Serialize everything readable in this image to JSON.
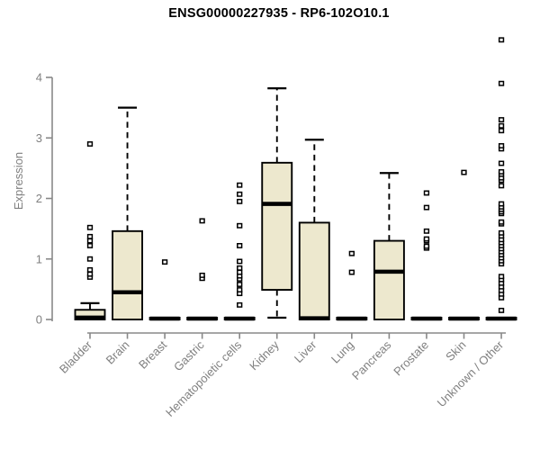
{
  "chart_data": {
    "type": "boxplot",
    "title": "ENSG00000227935 - RP6-102O10.1",
    "ylabel": "Expression",
    "xlabel": "",
    "ylim": [
      0,
      4.7
    ],
    "yticks": [
      0,
      1,
      2,
      3,
      4
    ],
    "grid": false,
    "legend": "none",
    "box_fill": "#EDE8CE",
    "box_border": "#000000",
    "median_color": "#000000",
    "axis_color": "#888888",
    "label_color": "#808080",
    "title_color": "#000000",
    "categories": [
      "Bladder",
      "Brain",
      "Breast",
      "Gastric",
      "Hematopoietic cells",
      "Kidney",
      "Liver",
      "Lung",
      "Pancreas",
      "Prostate",
      "Skin",
      "Unknown / Other"
    ],
    "series": [
      {
        "name": "Bladder",
        "whisker_low": 0,
        "q1": 0,
        "median": 0.03,
        "q3": 0.16,
        "whisker_high": 0.27,
        "outliers": [
          0.7,
          0.75,
          0.82,
          1.0,
          1.22,
          1.3,
          1.37,
          1.52,
          2.9
        ]
      },
      {
        "name": "Brain",
        "whisker_low": 0,
        "q1": 0,
        "median": 0.45,
        "q3": 1.46,
        "whisker_high": 3.5,
        "outliers": []
      },
      {
        "name": "Breast",
        "whisker_low": 0,
        "q1": 0,
        "median": 0.015,
        "q3": 0.03,
        "whisker_high": 0.03,
        "outliers": [
          0.95
        ]
      },
      {
        "name": "Gastric",
        "whisker_low": 0,
        "q1": 0,
        "median": 0.015,
        "q3": 0.03,
        "whisker_high": 0.03,
        "outliers": [
          0.68,
          0.73,
          1.63
        ]
      },
      {
        "name": "Hematopoietic cells",
        "whisker_low": 0,
        "q1": 0,
        "median": 0.015,
        "q3": 0.03,
        "whisker_high": 0.03,
        "outliers": [
          0.24,
          0.43,
          0.49,
          0.58,
          0.67,
          0.72,
          0.78,
          0.85,
          0.96,
          1.22,
          1.55,
          1.95,
          2.07,
          2.22
        ]
      },
      {
        "name": "Kidney",
        "whisker_low": 0.03,
        "q1": 0.49,
        "median": 1.91,
        "q3": 2.59,
        "whisker_high": 3.82,
        "outliers": []
      },
      {
        "name": "Liver",
        "whisker_low": 0,
        "q1": 0,
        "median": 0.02,
        "q3": 1.6,
        "whisker_high": 2.97,
        "outliers": []
      },
      {
        "name": "Lung",
        "whisker_low": 0,
        "q1": 0,
        "median": 0.015,
        "q3": 0.03,
        "whisker_high": 0.03,
        "outliers": [
          0.78,
          1.09
        ]
      },
      {
        "name": "Pancreas",
        "whisker_low": 0,
        "q1": 0,
        "median": 0.79,
        "q3": 1.3,
        "whisker_high": 2.42,
        "outliers": []
      },
      {
        "name": "Prostate",
        "whisker_low": 0,
        "q1": 0,
        "median": 0.015,
        "q3": 0.03,
        "whisker_high": 0.03,
        "outliers": [
          1.18,
          1.21,
          1.3,
          1.33,
          1.46,
          1.85,
          2.09
        ]
      },
      {
        "name": "Skin",
        "whisker_low": 0,
        "q1": 0,
        "median": 0.015,
        "q3": 0.03,
        "whisker_high": 0.03,
        "outliers": [
          2.43
        ]
      },
      {
        "name": "Unknown / Other",
        "whisker_low": 0,
        "q1": 0,
        "median": 0.015,
        "q3": 0.03,
        "whisker_high": 0.03,
        "outliers": [
          0.15,
          0.36,
          0.42,
          0.48,
          0.54,
          0.6,
          0.66,
          0.71,
          0.92,
          0.97,
          1.02,
          1.07,
          1.12,
          1.17,
          1.22,
          1.27,
          1.32,
          1.38,
          1.43,
          1.58,
          1.61,
          1.75,
          1.78,
          1.82,
          1.86,
          1.91,
          2.21,
          2.3,
          2.34,
          2.4,
          2.44,
          2.58,
          2.82,
          2.87,
          3.12,
          3.2,
          3.3,
          3.9,
          4.62
        ]
      }
    ]
  }
}
